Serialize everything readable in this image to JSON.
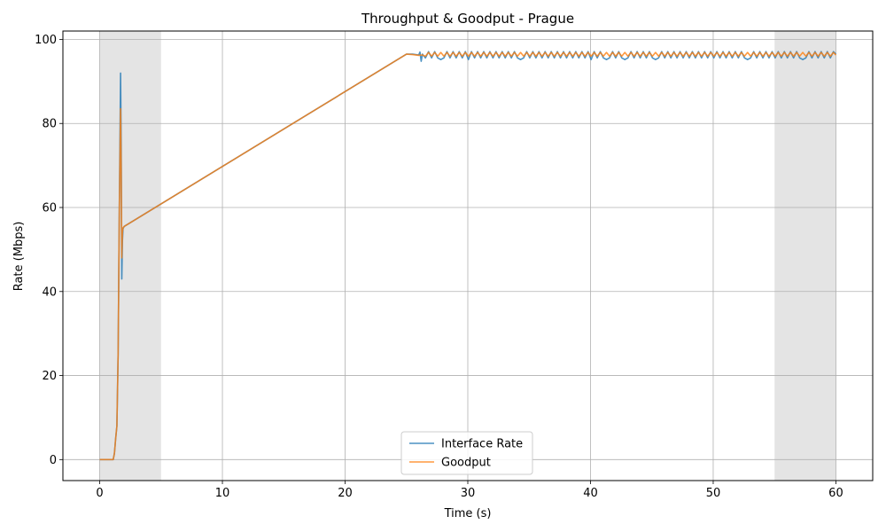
{
  "chart_data": {
    "type": "line",
    "title": "Throughput & Goodput - Prague",
    "xlabel": "Time (s)",
    "ylabel": "Rate (Mbps)",
    "xlim": [
      -3,
      63
    ],
    "ylim": [
      -5,
      102
    ],
    "x_ticks": [
      0,
      10,
      20,
      30,
      40,
      50,
      60
    ],
    "y_ticks": [
      0,
      20,
      40,
      60,
      80,
      100
    ],
    "grid": true,
    "legend_position": "lower center",
    "shaded_regions": [
      [
        0,
        5
      ],
      [
        55,
        60
      ]
    ],
    "shade_color": "#e4e4e4",
    "series": [
      {
        "name": "Interface Rate",
        "color": "#1f77b4",
        "points": [
          [
            0,
            0
          ],
          [
            1.1,
            0
          ],
          [
            1.2,
            1.5
          ],
          [
            1.3,
            5
          ],
          [
            1.4,
            8
          ],
          [
            1.5,
            25
          ],
          [
            1.6,
            60
          ],
          [
            1.7,
            92
          ],
          [
            1.75,
            75
          ],
          [
            1.8,
            43
          ],
          [
            1.85,
            52
          ],
          [
            1.9,
            55
          ],
          [
            2.0,
            55.5
          ],
          [
            25,
            96.5
          ],
          [
            25.5,
            96.5
          ],
          [
            26,
            96.3
          ],
          [
            26.1,
            97
          ],
          [
            26.2,
            94.8
          ],
          [
            26.3,
            96.5
          ],
          [
            27,
            96.6
          ],
          [
            28,
            96.5
          ],
          [
            30,
            96.6
          ],
          [
            34,
            96.6
          ],
          [
            40,
            96.6
          ],
          [
            45,
            96.6
          ],
          [
            50,
            96.6
          ],
          [
            55,
            96.6
          ],
          [
            60,
            96.5
          ]
        ],
        "oscillation": {
          "x_start": 26.3,
          "x_end": 60,
          "period": 0.5,
          "low": 95.6,
          "high": 97.1,
          "dip_times": [
            27.9,
            30.0,
            34.2,
            40.1,
            41.3,
            42.8,
            45.2,
            52.9,
            57.4
          ],
          "dip_value": 95.2
        }
      },
      {
        "name": "Goodput",
        "color": "#ff7f0e",
        "points": [
          [
            0,
            0
          ],
          [
            1.1,
            0
          ],
          [
            1.2,
            1.5
          ],
          [
            1.3,
            5
          ],
          [
            1.4,
            8
          ],
          [
            1.5,
            25
          ],
          [
            1.6,
            60
          ],
          [
            1.7,
            83.5
          ],
          [
            1.75,
            70
          ],
          [
            1.8,
            48
          ],
          [
            1.85,
            54
          ],
          [
            1.9,
            55.2
          ],
          [
            2.0,
            55.5
          ],
          [
            25,
            96.5
          ],
          [
            25.5,
            96.4
          ],
          [
            26,
            96.2
          ],
          [
            26.3,
            96.3
          ],
          [
            27,
            96.4
          ],
          [
            30,
            96.4
          ],
          [
            40,
            96.4
          ],
          [
            50,
            96.4
          ],
          [
            60,
            96.3
          ]
        ],
        "oscillation": {
          "x_start": 26.3,
          "x_end": 60,
          "period": 0.5,
          "low": 96.0,
          "high": 96.9,
          "dip_times": [],
          "dip_value": 95.8
        }
      }
    ]
  }
}
